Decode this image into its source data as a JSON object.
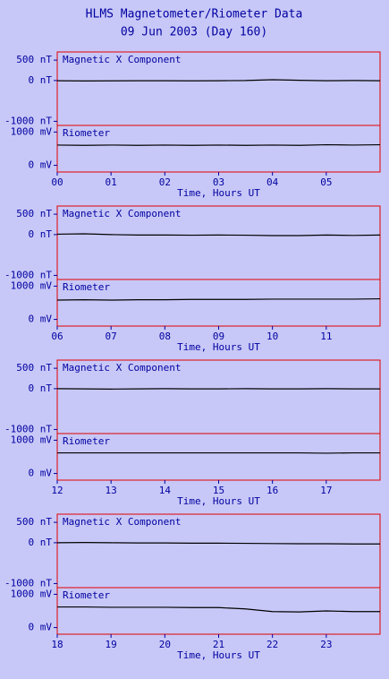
{
  "header": {
    "title": "HLMS Magnetometer/Riometer Data",
    "subtitle": "09 Jun 2003 (Day 160)"
  },
  "chart_data": [
    {
      "type": "line",
      "x_label": "Time, Hours UT",
      "xlim": [
        0,
        6
      ],
      "xticks": [
        {
          "value": 0,
          "label": "00"
        },
        {
          "value": 1,
          "label": "01"
        },
        {
          "value": 2,
          "label": "02"
        },
        {
          "value": 3,
          "label": "03"
        },
        {
          "value": 4,
          "label": "04"
        },
        {
          "value": 5,
          "label": "05"
        }
      ],
      "x": [
        0,
        0.5,
        1,
        1.5,
        2,
        2.5,
        3,
        3.5,
        4,
        4.5,
        5,
        5.5,
        6
      ],
      "subplots": [
        {
          "title": "Magnetic X Component",
          "ylim": [
            -1100,
            700
          ],
          "yticks": [
            {
              "value": 500,
              "label": "500 nT"
            },
            {
              "value": 0,
              "label": "0 nT"
            },
            {
              "value": -1000,
              "label": "-1000 nT"
            }
          ],
          "series": [
            {
              "color": "#000000",
              "values": [
                -5,
                -10,
                -8,
                -5,
                -5,
                -8,
                -5,
                0,
                20,
                5,
                -5,
                0,
                -5
              ]
            }
          ]
        },
        {
          "title": "Riometer",
          "ylim": [
            -200,
            1200
          ],
          "yticks": [
            {
              "value": 1000,
              "label": "1000 mV"
            },
            {
              "value": 0,
              "label": "0 mV"
            }
          ],
          "series": [
            {
              "color": "#000000",
              "values": [
                610,
                600,
                610,
                600,
                610,
                600,
                610,
                600,
                610,
                600,
                620,
                610,
                620
              ]
            }
          ]
        }
      ]
    },
    {
      "type": "line",
      "x_label": "Time, Hours UT",
      "xlim": [
        6,
        12
      ],
      "xticks": [
        {
          "value": 6,
          "label": "06"
        },
        {
          "value": 7,
          "label": "07"
        },
        {
          "value": 8,
          "label": "08"
        },
        {
          "value": 9,
          "label": "09"
        },
        10,
        11
      ],
      "x": [
        6,
        6.5,
        7,
        7.5,
        8,
        8.5,
        9,
        9.5,
        10,
        10.5,
        11,
        11.5,
        12
      ],
      "subplots": [
        {
          "title": "Magnetic X Component",
          "ylim": [
            -1100,
            700
          ],
          "yticks": [
            {
              "value": 500,
              "label": "500 nT"
            },
            {
              "value": 0,
              "label": "0 nT"
            },
            {
              "value": -1000,
              "label": "-1000 nT"
            }
          ],
          "series": [
            {
              "color": "#000000",
              "values": [
                10,
                20,
                0,
                -10,
                -10,
                -15,
                -10,
                -15,
                -25,
                -25,
                -10,
                -20,
                -10
              ]
            }
          ]
        },
        {
          "title": "Riometer",
          "ylim": [
            -200,
            1200
          ],
          "yticks": [
            {
              "value": 1000,
              "label": "1000 mV"
            },
            {
              "value": 0,
              "label": "0 mV"
            }
          ],
          "series": [
            {
              "color": "#000000",
              "values": [
                580,
                590,
                580,
                590,
                590,
                600,
                600,
                600,
                610,
                610,
                610,
                610,
                620
              ]
            }
          ]
        }
      ]
    },
    {
      "type": "line",
      "x_label": "Time, Hours UT",
      "xlim": [
        12,
        18
      ],
      "xticks": [
        12,
        13,
        14,
        15,
        16,
        17
      ],
      "x": [
        12,
        12.5,
        13,
        13.5,
        14,
        14.5,
        15,
        15.5,
        16,
        16.5,
        17,
        17.5,
        18
      ],
      "subplots": [
        {
          "title": "Magnetic X Component",
          "ylim": [
            -1100,
            700
          ],
          "yticks": [
            {
              "value": 500,
              "label": "500 nT"
            },
            {
              "value": 0,
              "label": "0 nT"
            },
            {
              "value": -1000,
              "label": "-1000 nT"
            }
          ],
          "series": [
            {
              "color": "#000000",
              "values": [
                0,
                -5,
                -10,
                -5,
                0,
                -5,
                -5,
                0,
                -5,
                -5,
                0,
                -5,
                -5
              ]
            }
          ]
        },
        {
          "title": "Riometer",
          "ylim": [
            -200,
            1200
          ],
          "yticks": [
            {
              "value": 1000,
              "label": "1000 mV"
            },
            {
              "value": 0,
              "label": "0 mV"
            }
          ],
          "series": [
            {
              "color": "#000000",
              "values": [
                620,
                620,
                620,
                620,
                620,
                620,
                620,
                620,
                620,
                620,
                610,
                620,
                620
              ]
            }
          ]
        }
      ]
    },
    {
      "type": "line",
      "x_label": "Time, Hours UT",
      "xlim": [
        18,
        24
      ],
      "xticks": [
        18,
        19,
        20,
        21,
        22,
        23
      ],
      "x": [
        18,
        18.5,
        19,
        19.5,
        20,
        20.5,
        21,
        21.5,
        22,
        22.5,
        23,
        23.5,
        24
      ],
      "subplots": [
        {
          "title": "Magnetic X Component",
          "ylim": [
            -1100,
            700
          ],
          "yticks": [
            {
              "value": 500,
              "label": "500 nT"
            },
            {
              "value": 0,
              "label": "0 nT"
            },
            {
              "value": -1000,
              "label": "-1000 nT"
            }
          ],
          "series": [
            {
              "color": "#000000",
              "values": [
                0,
                5,
                0,
                -5,
                -5,
                -10,
                -10,
                -15,
                -20,
                -25,
                -25,
                -30,
                -30
              ]
            }
          ]
        },
        {
          "title": "Riometer",
          "ylim": [
            -200,
            1200
          ],
          "yticks": [
            {
              "value": 1000,
              "label": "1000 mV"
            },
            {
              "value": 0,
              "label": "0 mV"
            }
          ],
          "series": [
            {
              "color": "#000000",
              "values": [
                620,
                620,
                610,
                610,
                610,
                600,
                600,
                560,
                480,
                470,
                500,
                480,
                480
              ]
            }
          ]
        }
      ]
    }
  ]
}
